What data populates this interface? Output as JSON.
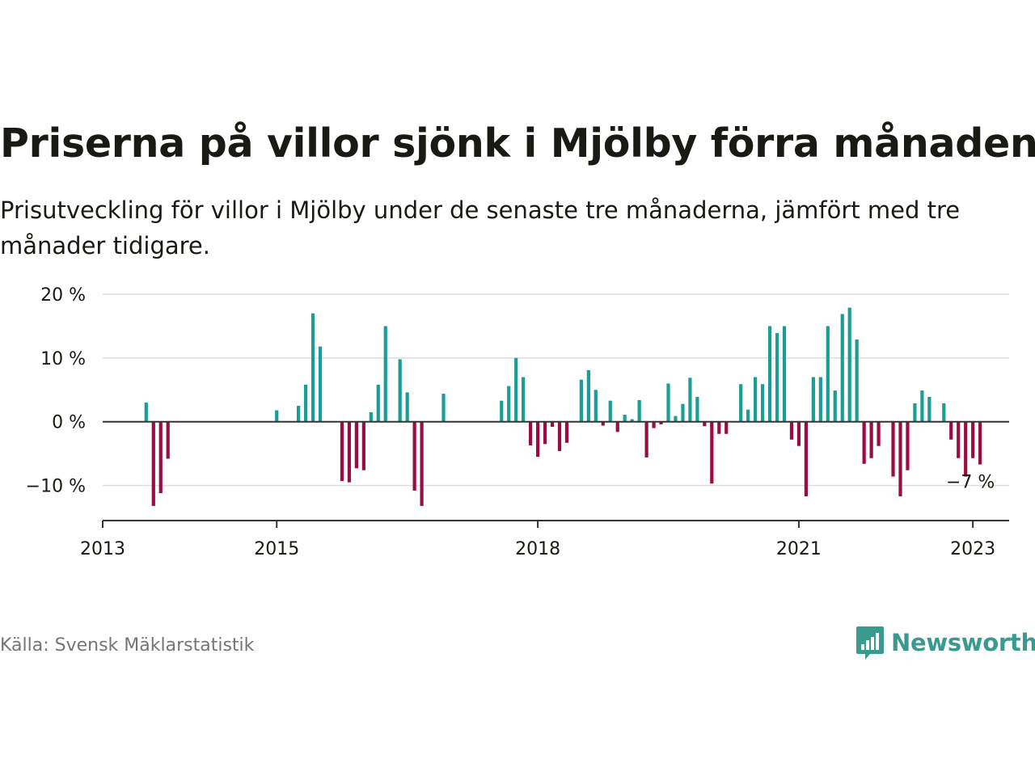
{
  "title": "Priserna på villor sjönk i Mjölby förra månaden",
  "subtitle": "Prisutveckling för villor i Mjölby under de senaste tre månaderna, jämfört med tre månader tidigare.",
  "source": "Källa: Svensk Mäklarstatistik",
  "brand": {
    "name": "Newsworthy",
    "logo_icon": "bar-chart-speech-bubble-icon"
  },
  "colors": {
    "positive": "#1a9e94",
    "negative": "#9b0c45",
    "grid": "#dddddd",
    "axis": "#333333",
    "brand": "#3a9a90"
  },
  "chart_data": {
    "type": "bar",
    "x_type": "date",
    "x_start": "2013-01",
    "x_end": "2023-06",
    "ylim": [
      -15.5,
      20
    ],
    "yticks": [
      20,
      10,
      0,
      -10
    ],
    "ytick_labels": [
      "20 %",
      "10 %",
      "0 %",
      "−10 %"
    ],
    "xticks": [
      "2013-01",
      "2015-01",
      "2018-01",
      "2021-01",
      "2023-01"
    ],
    "xtick_labels": [
      "2013",
      "2015",
      "2018",
      "2021",
      "2023"
    ],
    "grid": true,
    "annotation": {
      "date": "2023-01",
      "text": "−7 %"
    },
    "points": [
      {
        "date": "2013-07",
        "value": 3
      },
      {
        "date": "2013-08",
        "value": -13.2
      },
      {
        "date": "2013-09",
        "value": -11.2
      },
      {
        "date": "2013-10",
        "value": -5.8
      },
      {
        "date": "2015-01",
        "value": 1.8
      },
      {
        "date": "2015-04",
        "value": 2.5
      },
      {
        "date": "2015-05",
        "value": 5.8
      },
      {
        "date": "2015-06",
        "value": 17
      },
      {
        "date": "2015-07",
        "value": 11.8
      },
      {
        "date": "2015-10",
        "value": -9.3
      },
      {
        "date": "2015-11",
        "value": -9.5
      },
      {
        "date": "2015-12",
        "value": -7.3
      },
      {
        "date": "2016-01",
        "value": -7.6
      },
      {
        "date": "2016-02",
        "value": 1.5
      },
      {
        "date": "2016-03",
        "value": 5.8
      },
      {
        "date": "2016-04",
        "value": 15
      },
      {
        "date": "2016-06",
        "value": 9.8
      },
      {
        "date": "2016-07",
        "value": 4.6
      },
      {
        "date": "2016-08",
        "value": -10.8
      },
      {
        "date": "2016-09",
        "value": -13.2
      },
      {
        "date": "2016-12",
        "value": 4.4
      },
      {
        "date": "2017-08",
        "value": 3.3
      },
      {
        "date": "2017-09",
        "value": 5.6
      },
      {
        "date": "2017-10",
        "value": 10
      },
      {
        "date": "2017-11",
        "value": 7
      },
      {
        "date": "2017-12",
        "value": -3.7
      },
      {
        "date": "2018-01",
        "value": -5.5
      },
      {
        "date": "2018-02",
        "value": -3.5
      },
      {
        "date": "2018-03",
        "value": -0.8
      },
      {
        "date": "2018-04",
        "value": -4.6
      },
      {
        "date": "2018-05",
        "value": -3.3
      },
      {
        "date": "2018-07",
        "value": 6.6
      },
      {
        "date": "2018-08",
        "value": 8.1
      },
      {
        "date": "2018-09",
        "value": 5
      },
      {
        "date": "2018-10",
        "value": -0.6
      },
      {
        "date": "2018-11",
        "value": 3.3
      },
      {
        "date": "2018-12",
        "value": -1.6
      },
      {
        "date": "2019-01",
        "value": 1.1
      },
      {
        "date": "2019-02",
        "value": 0.4
      },
      {
        "date": "2019-03",
        "value": 3.4
      },
      {
        "date": "2019-04",
        "value": -5.6
      },
      {
        "date": "2019-05",
        "value": -1
      },
      {
        "date": "2019-06",
        "value": -0.4
      },
      {
        "date": "2019-07",
        "value": 6
      },
      {
        "date": "2019-08",
        "value": 0.9
      },
      {
        "date": "2019-09",
        "value": 2.8
      },
      {
        "date": "2019-10",
        "value": 6.9
      },
      {
        "date": "2019-11",
        "value": 3.9
      },
      {
        "date": "2019-12",
        "value": -0.7
      },
      {
        "date": "2020-01",
        "value": -9.7
      },
      {
        "date": "2020-02",
        "value": -1.9
      },
      {
        "date": "2020-03",
        "value": -1.9
      },
      {
        "date": "2020-05",
        "value": 5.9
      },
      {
        "date": "2020-06",
        "value": 1.9
      },
      {
        "date": "2020-07",
        "value": 7
      },
      {
        "date": "2020-08",
        "value": 5.9
      },
      {
        "date": "2020-09",
        "value": 15
      },
      {
        "date": "2020-10",
        "value": 13.9
      },
      {
        "date": "2020-11",
        "value": 15
      },
      {
        "date": "2020-12",
        "value": -2.8
      },
      {
        "date": "2021-01",
        "value": -3.8
      },
      {
        "date": "2021-02",
        "value": -11.7
      },
      {
        "date": "2021-03",
        "value": 7
      },
      {
        "date": "2021-04",
        "value": 7
      },
      {
        "date": "2021-05",
        "value": 15
      },
      {
        "date": "2021-06",
        "value": 4.9
      },
      {
        "date": "2021-07",
        "value": 16.9
      },
      {
        "date": "2021-08",
        "value": 17.9
      },
      {
        "date": "2021-09",
        "value": 12.9
      },
      {
        "date": "2021-10",
        "value": -6.6
      },
      {
        "date": "2021-11",
        "value": -5.7
      },
      {
        "date": "2021-12",
        "value": -3.8
      },
      {
        "date": "2022-02",
        "value": -8.6
      },
      {
        "date": "2022-03",
        "value": -11.7
      },
      {
        "date": "2022-04",
        "value": -7.6
      },
      {
        "date": "2022-05",
        "value": 2.9
      },
      {
        "date": "2022-06",
        "value": 4.9
      },
      {
        "date": "2022-07",
        "value": 3.9
      },
      {
        "date": "2022-09",
        "value": 2.9
      },
      {
        "date": "2022-10",
        "value": -2.8
      },
      {
        "date": "2022-11",
        "value": -5.7
      },
      {
        "date": "2022-12",
        "value": -8.6
      },
      {
        "date": "2023-01",
        "value": -5.7
      },
      {
        "date": "2023-02",
        "value": -6.7
      }
    ]
  }
}
